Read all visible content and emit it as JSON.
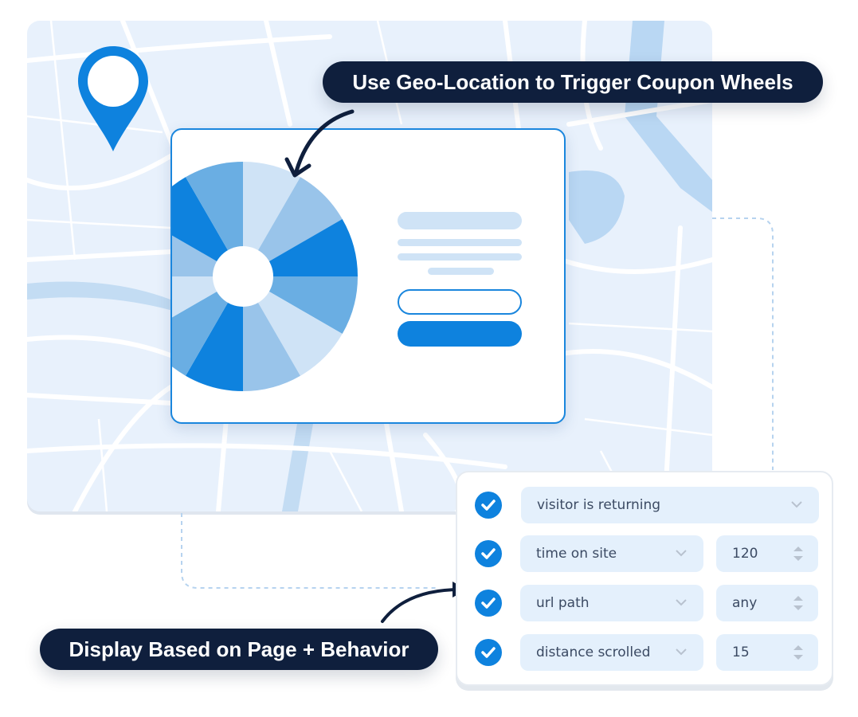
{
  "callouts": {
    "top": "Use Geo-Location to Trigger Coupon Wheels",
    "bottom": "Display Based on Page + Behavior"
  },
  "colors": {
    "accent": "#0e82de",
    "dark_navy": "#0f1f3d",
    "map_bg": "#e8f1fc",
    "wheel": [
      "#cfe3f6",
      "#99c4ea",
      "#0e82de",
      "#6aaee3"
    ]
  },
  "icons": {
    "pin": "map-pin-icon",
    "check": "checkmark-icon",
    "dropdown": "chevron-down-icon",
    "stepper": "up-down-arrows-icon"
  },
  "rules": [
    {
      "condition": "visitor is returning"
    },
    {
      "condition": "time on site",
      "value": "120"
    },
    {
      "condition": "url path",
      "value": "any"
    },
    {
      "condition": "distance scrolled",
      "value": "15"
    }
  ]
}
